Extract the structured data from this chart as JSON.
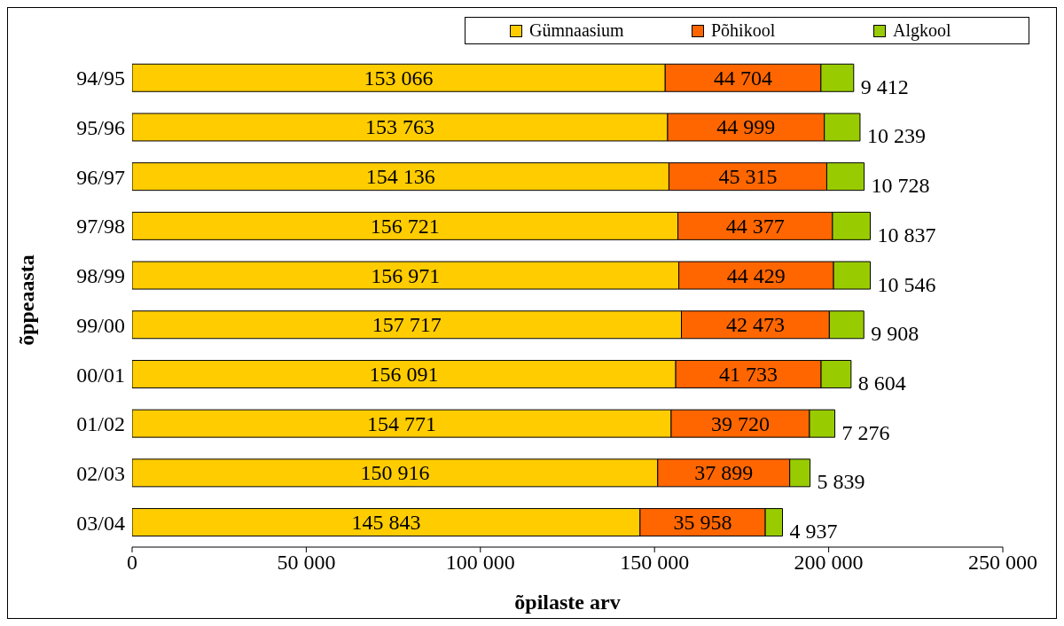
{
  "chart_data": {
    "type": "bar",
    "orientation": "horizontal",
    "stacked": true,
    "xlabel": "õpilaste arv",
    "ylabel": "õppeaasta",
    "legend": "top right",
    "grid": false,
    "categories": [
      "94/95",
      "95/96",
      "96/97",
      "97/98",
      "98/99",
      "99/00",
      "00/01",
      "01/02",
      "02/03",
      "03/04"
    ],
    "xlim": [
      0,
      250000
    ],
    "xticks": [
      {
        "value": 0,
        "label": "0"
      },
      {
        "value": 50000,
        "label": "50 000"
      },
      {
        "value": 100000,
        "label": "100 000"
      },
      {
        "value": 150000,
        "label": "150 000"
      },
      {
        "value": 200000,
        "label": "200 000"
      },
      {
        "value": 250000,
        "label": "250 000"
      }
    ],
    "series": [
      {
        "name": "Gümnaasium",
        "color": "#ffcc00",
        "values": [
          153066,
          153763,
          154136,
          156721,
          156971,
          157717,
          156091,
          154771,
          150916,
          145843
        ],
        "value_labels": [
          "153 066",
          "153 763",
          "154 136",
          "156 721",
          "156 971",
          "157 717",
          "156 091",
          "154 771",
          "150 916",
          "145 843"
        ]
      },
      {
        "name": "Põhikool",
        "color": "#ff6600",
        "values": [
          44704,
          44999,
          45315,
          44377,
          44429,
          42473,
          41733,
          39720,
          37899,
          35958
        ],
        "value_labels": [
          "44 704",
          "44 999",
          "45 315",
          "44 377",
          "44 429",
          "42 473",
          "41 733",
          "39 720",
          "37 899",
          "35 958"
        ]
      },
      {
        "name": "Algkool",
        "color": "#99cc00",
        "values": [
          9412,
          10239,
          10728,
          10837,
          10546,
          9908,
          8604,
          7276,
          5839,
          4937
        ],
        "value_labels": [
          "9 412",
          "10 239",
          "10 728",
          "10 837",
          "10 546",
          "9 908",
          "8 604",
          "7 276",
          "5 839",
          "4 937"
        ]
      }
    ]
  }
}
